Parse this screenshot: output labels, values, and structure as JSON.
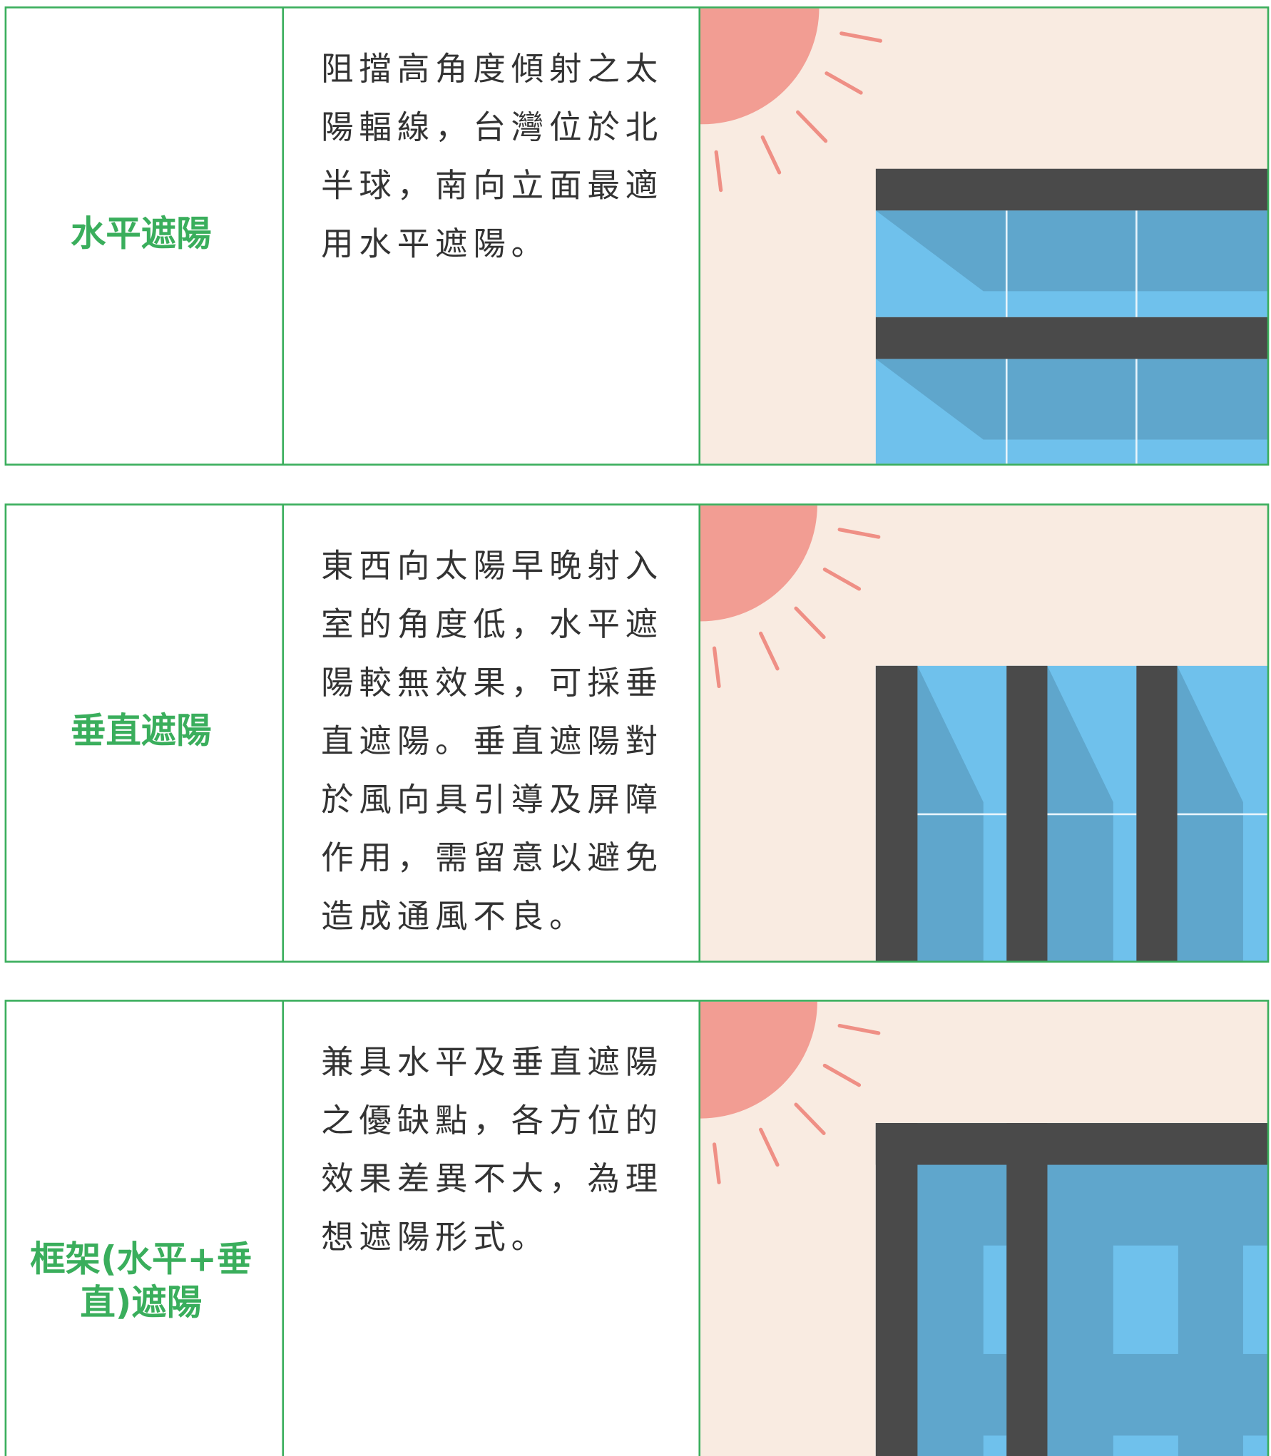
{
  "table": {
    "rows": [
      {
        "label": [
          "水平遮陽"
        ],
        "description": [
          "阻擋高角度傾射之太",
          "陽輻線，台灣位於北",
          "半球，南向立面最適",
          "用水平遮陽。"
        ]
      },
      {
        "label": [
          "垂直遮陽"
        ],
        "description": [
          "東西向太陽早晚射入",
          "室的角度低，水平遮",
          "陽較無效果，可採垂",
          "直遮陽。垂直遮陽對",
          "於風向具引導及屏障",
          "作用，需留意以避免",
          "造成通風不良。"
        ]
      },
      {
        "label": [
          "框架(水平+垂",
          "直)遮陽"
        ],
        "description": [
          "兼具水平及垂直遮陽",
          "之優缺點，各方位的",
          "效果差異不大，為理",
          "想遮陽形式。"
        ]
      }
    ]
  }
}
